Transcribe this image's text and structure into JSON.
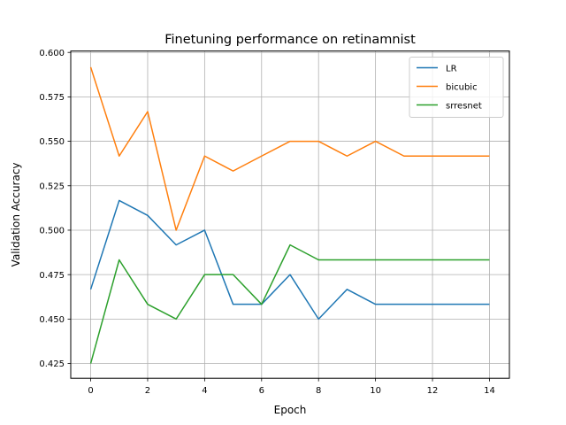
{
  "chart_data": {
    "type": "line",
    "title": "Finetuning performance on retinamnist",
    "xlabel": "Epoch",
    "ylabel": "Validation Accuracy",
    "x": [
      0,
      1,
      2,
      3,
      4,
      5,
      6,
      7,
      8,
      9,
      10,
      11,
      12,
      13,
      14
    ],
    "xlim": [
      -0.7,
      14.7
    ],
    "ylim": [
      0.4167,
      0.6008
    ],
    "xticks": [
      "0",
      "2",
      "4",
      "6",
      "8",
      "10",
      "12",
      "14"
    ],
    "yticks": [
      "0.425",
      "0.450",
      "0.475",
      "0.500",
      "0.525",
      "0.550",
      "0.575",
      "0.600"
    ],
    "grid": true,
    "legend_position": "top-right",
    "series": [
      {
        "name": "LR",
        "color": "#1f77b4",
        "values": [
          0.4667,
          0.5167,
          0.5083,
          0.4917,
          0.5,
          0.4583,
          0.4583,
          0.475,
          0.45,
          0.4667,
          0.4583,
          0.4583,
          0.4583,
          0.4583,
          0.4583
        ]
      },
      {
        "name": "bicubic",
        "color": "#ff7f0e",
        "values": [
          0.5917,
          0.5417,
          0.5667,
          0.5,
          0.5417,
          0.5333,
          0.5417,
          0.55,
          0.55,
          0.5417,
          0.55,
          0.5417,
          0.5417,
          0.5417,
          0.5417
        ]
      },
      {
        "name": "srresnet",
        "color": "#2ca02c",
        "values": [
          0.425,
          0.4833,
          0.4583,
          0.45,
          0.475,
          0.475,
          0.4583,
          0.4917,
          0.4833,
          0.4833,
          0.4833,
          0.4833,
          0.4833,
          0.4833,
          0.4833
        ]
      }
    ]
  }
}
